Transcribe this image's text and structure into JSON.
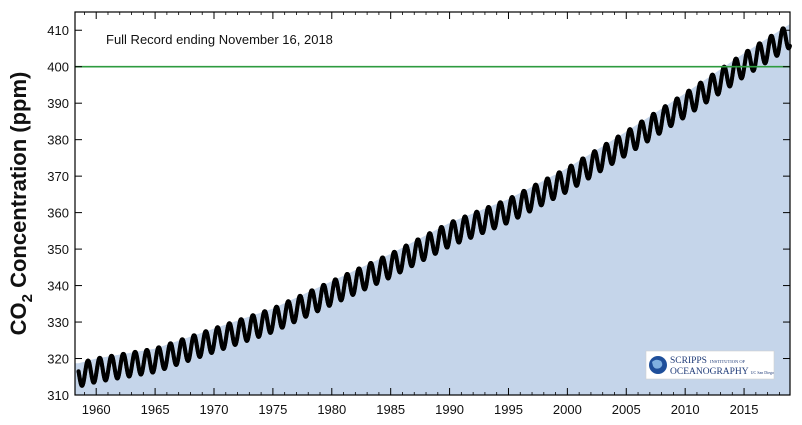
{
  "chart_data": {
    "type": "scatter",
    "title": "",
    "annotation": "Full Record ending November 16, 2018",
    "ylabel": {
      "main": "CO",
      "sub": "2",
      "rest": " Concentration (ppm)"
    },
    "xlabel": "",
    "xlim": [
      1958.2,
      2018.9
    ],
    "ylim": [
      310,
      415
    ],
    "x_ticks": [
      1960,
      1965,
      1970,
      1975,
      1980,
      1985,
      1990,
      1995,
      2000,
      2005,
      2010,
      2015
    ],
    "x_tick_labels": [
      "1960",
      "1965",
      "1970",
      "1975",
      "1980",
      "1985",
      "1990",
      "1995",
      "2000",
      "2005",
      "2010",
      "2015"
    ],
    "y_ticks": [
      310,
      320,
      330,
      340,
      350,
      360,
      370,
      380,
      390,
      400,
      410
    ],
    "y_tick_labels": [
      "310",
      "320",
      "330",
      "340",
      "350",
      "360",
      "370",
      "380",
      "390",
      "400",
      "410"
    ],
    "reference_line": {
      "y": 400,
      "color": "#2e9b3f"
    },
    "fill_color": "#c5d5ea",
    "marker_color": "#000000",
    "trend_anchors": [
      {
        "x": 1958.5,
        "y": 315.5
      },
      {
        "x": 1960,
        "y": 316.8
      },
      {
        "x": 1965,
        "y": 319.5
      },
      {
        "x": 1970,
        "y": 325.0
      },
      {
        "x": 1975,
        "y": 330.5
      },
      {
        "x": 1980,
        "y": 338.0
      },
      {
        "x": 1985,
        "y": 345.5
      },
      {
        "x": 1990,
        "y": 354.0
      },
      {
        "x": 1995,
        "y": 360.5
      },
      {
        "x": 2000,
        "y": 369.0
      },
      {
        "x": 2005,
        "y": 379.0
      },
      {
        "x": 2010,
        "y": 389.5
      },
      {
        "x": 2015,
        "y": 400.5
      },
      {
        "x": 2018.9,
        "y": 408.5
      }
    ],
    "seasonal_amplitude_ppm": 3.2,
    "grid": false,
    "legend": "none"
  },
  "logo": {
    "line1": "SCRIPPS",
    "line1_small": "INSTITUTION OF",
    "line2": "OCEANOGRAPHY",
    "line2_small": "UC San Diego"
  }
}
